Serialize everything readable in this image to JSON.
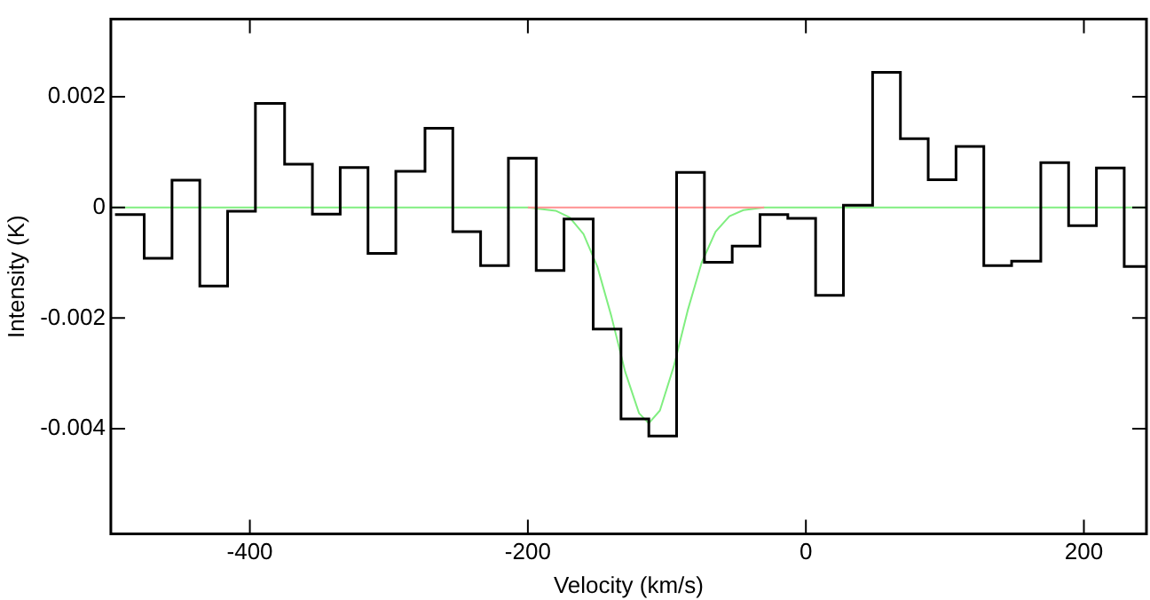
{
  "chart_data": {
    "type": "histogram",
    "xlabel": "Velocity (km/s)",
    "ylabel": "Intensity (K)",
    "bins": [
      -497,
      -476,
      -456,
      -436,
      -416,
      -396,
      -375,
      -355,
      -335,
      -315,
      -295,
      -274,
      -254,
      -234,
      -214,
      -194,
      -174,
      -153,
      -133,
      -113,
      -93,
      -73,
      -53,
      -33,
      -13,
      7,
      27,
      48,
      68,
      88,
      108,
      128,
      148,
      169,
      189,
      209,
      229,
      245
    ],
    "values": [
      -0.00013,
      -0.00092,
      0.00049,
      -0.00142,
      -7e-05,
      0.00188,
      0.00078,
      -0.00012,
      0.00072,
      -0.00083,
      0.00065,
      0.00143,
      -0.00044,
      -0.00105,
      0.00089,
      -0.00114,
      -0.00021,
      -0.0022,
      -0.00382,
      -0.00413,
      0.00063,
      -0.00099,
      -0.0007,
      -0.00013,
      -0.0002,
      -0.00159,
      4e-05,
      0.00244,
      0.00124,
      0.0005,
      0.0011,
      -0.00105,
      -0.00097,
      0.00081,
      -0.00033,
      0.00071,
      -0.00107
    ],
    "color": "#000000",
    "series": [
      {
        "type": "line",
        "color": "#ff9090",
        "x": [
          -200,
          -30
        ],
        "values": [
          0,
          0
        ]
      },
      {
        "type": "line",
        "color": "#80ee80",
        "x": [
          -500,
          -200,
          -180,
          -170,
          -160,
          -150,
          -140,
          -130,
          -120,
          -113,
          -105,
          -95,
          -85,
          -75,
          -65,
          -55,
          -45,
          -30,
          245
        ],
        "values": [
          0,
          0,
          -6e-05,
          -0.00018,
          -0.00048,
          -0.00107,
          -0.00196,
          -0.00297,
          -0.00372,
          -0.0039,
          -0.00367,
          -0.00287,
          -0.00186,
          -0.001,
          -0.00044,
          -0.00016,
          -5e-05,
          0,
          0
        ]
      }
    ],
    "xlim": [
      -500,
      245
    ],
    "xticks": [
      -400,
      -200,
      0,
      200
    ],
    "ylim": [
      -0.0059,
      0.0034
    ],
    "yticks": [
      {
        "value": 0.002,
        "label": "0.002"
      },
      0,
      {
        "value": -0.002,
        "label": "-0.002"
      },
      {
        "value": -0.004,
        "label": "-0.004"
      }
    ],
    "grid": false,
    "legend": false
  }
}
